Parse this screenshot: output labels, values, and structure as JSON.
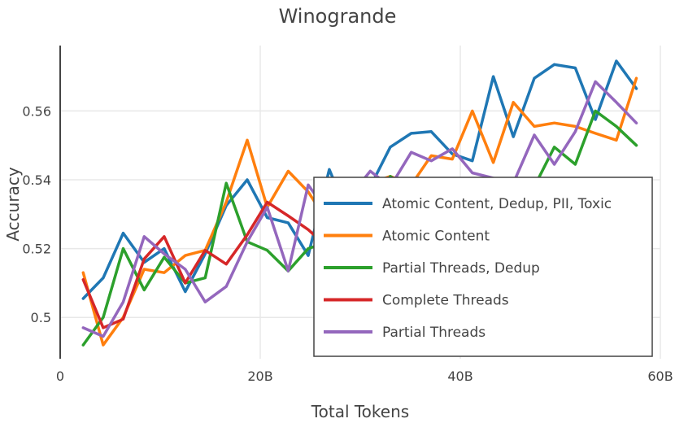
{
  "chart_data": {
    "type": "line",
    "title": "Winogrande",
    "xlabel": "Total Tokens",
    "ylabel": "Accuracy",
    "xlim": [
      0,
      60
    ],
    "ylim": [
      0.488,
      0.579
    ],
    "x_ticks": [
      0,
      20,
      40,
      60
    ],
    "x_tick_labels": [
      "0",
      "20B",
      "40B",
      "60B"
    ],
    "y_ticks": [
      0.5,
      0.52,
      0.54,
      0.56
    ],
    "y_tick_labels": [
      "0.5",
      "0.52",
      "0.54",
      "0.56"
    ],
    "grid": true,
    "legend_position": "bottom-right",
    "series": [
      {
        "name": "Atomic Content, Dedup, PII, Toxic",
        "color": "#1f77b4",
        "x": [
          2.3,
          4.3,
          6.3,
          8.4,
          10.4,
          12.5,
          14.5,
          16.6,
          18.7,
          20.7,
          22.8,
          24.8,
          26.9,
          28.9,
          31.0,
          33.0,
          35.1,
          37.1,
          39.2,
          41.2,
          43.3,
          45.3,
          47.4,
          49.4,
          51.5,
          53.5,
          55.6,
          57.6
        ],
        "y": [
          0.5055,
          0.5115,
          0.5245,
          0.516,
          0.52,
          0.5075,
          0.5185,
          0.5325,
          0.54,
          0.529,
          0.5275,
          0.518,
          0.543,
          0.529,
          0.538,
          0.5495,
          0.5535,
          0.554,
          0.5475,
          0.5455,
          0.57,
          0.5525,
          0.5695,
          0.5735,
          0.5725,
          0.5575,
          0.5745,
          0.5665
        ]
      },
      {
        "name": "Atomic Content",
        "color": "#ff7f0e",
        "x": [
          2.3,
          4.3,
          6.3,
          8.4,
          10.4,
          12.5,
          14.5,
          16.6,
          18.7,
          20.7,
          22.8,
          24.8,
          26.9,
          28.9,
          31.0,
          33.0,
          35.1,
          37.1,
          39.2,
          41.2,
          43.3,
          45.3,
          47.4,
          49.4,
          51.5,
          53.5,
          55.6,
          57.6
        ],
        "y": [
          0.513,
          0.492,
          0.5,
          0.514,
          0.513,
          0.518,
          0.5195,
          0.5335,
          0.5515,
          0.532,
          0.5425,
          0.5365,
          0.527,
          0.534,
          0.539,
          0.541,
          0.5385,
          0.547,
          0.546,
          0.56,
          0.545,
          0.5625,
          0.5555,
          0.5565,
          0.5555,
          0.5535,
          0.5515,
          0.5695
        ]
      },
      {
        "name": "Partial Threads, Dedup",
        "color": "#2ca02c",
        "x": [
          2.3,
          4.3,
          6.3,
          8.4,
          10.4,
          12.5,
          14.5,
          16.6,
          18.7,
          20.7,
          22.8,
          24.8,
          26.9,
          28.9,
          31.0,
          33.0,
          35.1,
          37.1,
          39.2,
          41.2,
          43.3,
          45.3,
          47.4,
          49.4,
          51.5,
          53.5,
          55.6,
          57.6
        ],
        "y": [
          0.492,
          0.5,
          0.52,
          0.508,
          0.5175,
          0.51,
          0.5115,
          0.539,
          0.522,
          0.5195,
          0.5135,
          0.52,
          0.522,
          0.525,
          0.53,
          0.541,
          0.537,
          0.533,
          0.53,
          0.531,
          0.534,
          0.536,
          0.538,
          0.5495,
          0.5445,
          0.56,
          0.5555,
          0.55
        ]
      },
      {
        "name": "Complete Threads",
        "color": "#d62728",
        "x": [
          2.3,
          4.3,
          6.3,
          8.4,
          10.4,
          12.5,
          14.5,
          16.6,
          18.7,
          20.7,
          22.8,
          24.8,
          26.9
        ],
        "y": [
          0.511,
          0.497,
          0.4995,
          0.517,
          0.5235,
          0.51,
          0.5195,
          0.5155,
          0.524,
          0.5335,
          0.5295,
          0.5255,
          0.52
        ]
      },
      {
        "name": "Partial Threads",
        "color": "#9467bd",
        "x": [
          2.3,
          4.3,
          6.3,
          8.4,
          10.4,
          12.5,
          14.5,
          16.6,
          18.7,
          20.7,
          22.8,
          24.8,
          26.9,
          28.9,
          31.0,
          33.0,
          35.1,
          37.1,
          39.2,
          41.2,
          43.3,
          45.3,
          47.4,
          49.4,
          51.5,
          53.5,
          55.6,
          57.6
        ],
        "y": [
          0.497,
          0.4945,
          0.5045,
          0.5235,
          0.5185,
          0.514,
          0.5045,
          0.509,
          0.522,
          0.532,
          0.5135,
          0.5385,
          0.53,
          0.535,
          0.5425,
          0.538,
          0.548,
          0.5455,
          0.549,
          0.542,
          0.5405,
          0.539,
          0.553,
          0.5445,
          0.554,
          0.5685,
          0.5625,
          0.5565
        ]
      }
    ]
  }
}
